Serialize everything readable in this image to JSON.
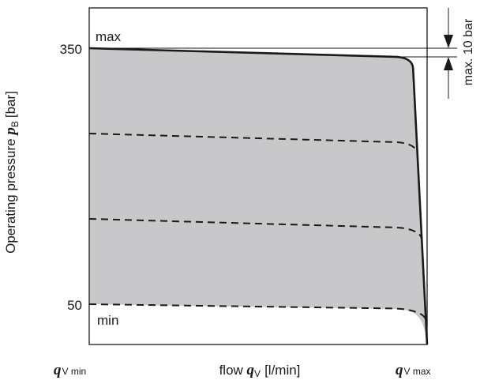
{
  "chart_data": {
    "type": "area",
    "xlabel": {
      "prefix": "flow",
      "symbol": "q",
      "subscript": "V",
      "unit": "[l/min]"
    },
    "ylabel": {
      "prefix": "Operating pressure",
      "symbol": "p",
      "subscript": "B",
      "unit": "[bar]"
    },
    "x_tick_labels": {
      "min": {
        "symbol": "q",
        "subscript": "V min"
      },
      "max": {
        "symbol": "q",
        "subscript": "V max"
      }
    },
    "y_ticks": [
      {
        "value": 350,
        "label": "350"
      },
      {
        "value": 50,
        "label": "50"
      }
    ],
    "annotations": {
      "max_label": "max",
      "min_label": "min",
      "tolerance_label": "max. 10 bar"
    },
    "x_range": [
      0,
      1
    ],
    "ylim": [
      -5,
      395
    ],
    "envelope": {
      "upper_start": 350,
      "upper_end": 340,
      "lower": 50,
      "fill_color": "#c8c8ca"
    },
    "series": [
      {
        "line": "solid",
        "level_start": 350,
        "level_end": 340
      },
      {
        "line": "dashed",
        "level_start": 250,
        "level_end": 240
      },
      {
        "line": "dashed",
        "level_start": 150,
        "level_end": 140
      },
      {
        "line": "dashed",
        "level_start": 50,
        "level_end": 45
      }
    ],
    "grid": false
  }
}
